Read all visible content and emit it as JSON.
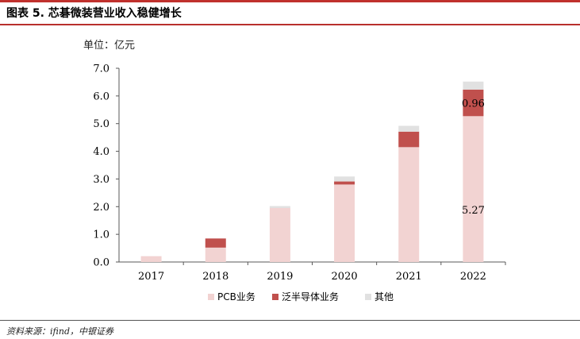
{
  "title": "图表 5. 芯碁微装营业收入稳健增长",
  "unit_label": "单位：亿元",
  "footer": "资料来源：ifind，中银证券",
  "colors": {
    "accent": "#c0312d",
    "pcb": "#f2d3d2",
    "semiconductor": "#c0504d",
    "other": "#e1e1e1"
  },
  "chart_data": {
    "type": "bar",
    "stacked": true,
    "categories": [
      "2017",
      "2018",
      "2019",
      "2020",
      "2021",
      "2022"
    ],
    "series": [
      {
        "name": "PCB业务",
        "values": [
          0.21,
          0.52,
          1.95,
          2.8,
          4.15,
          5.27
        ]
      },
      {
        "name": "泛半导体业务",
        "values": [
          0.0,
          0.33,
          0.0,
          0.11,
          0.56,
          0.96
        ]
      },
      {
        "name": "其他",
        "values": [
          0.0,
          0.0,
          0.07,
          0.18,
          0.21,
          0.29
        ]
      }
    ],
    "data_labels": [
      {
        "series": 0,
        "category": "2022",
        "text": "5.27"
      },
      {
        "series": 1,
        "category": "2022",
        "text": "0.96"
      }
    ],
    "yticks": [
      "0.0",
      "1.0",
      "2.0",
      "3.0",
      "4.0",
      "5.0",
      "6.0",
      "7.0"
    ],
    "ylim": [
      0,
      7
    ],
    "legend_position": "bottom",
    "grid": false
  }
}
